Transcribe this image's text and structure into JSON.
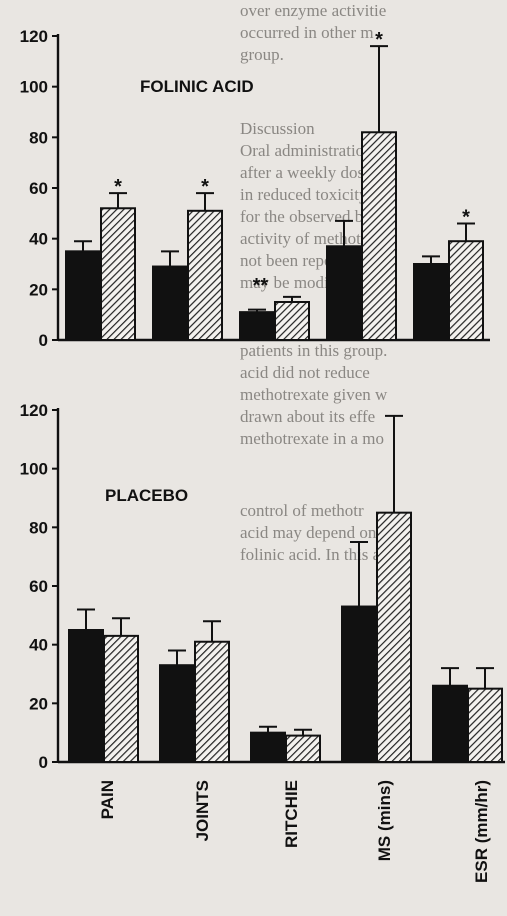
{
  "chart_data": [
    {
      "type": "bar",
      "title": "FOLINIC ACID",
      "categories": [
        "PAIN",
        "JOINTS",
        "RITCHIE",
        "MS  (mins)",
        "ESR  (mm/hr)"
      ],
      "ylim": [
        0,
        120
      ],
      "yticks": [
        0,
        20,
        40,
        60,
        80,
        100,
        120
      ],
      "series": [
        {
          "values": [
            35,
            29,
            11,
            37,
            30
          ],
          "errors": [
            4,
            6,
            1,
            10,
            3
          ],
          "fill": "solid"
        },
        {
          "values": [
            52,
            51,
            15,
            82,
            39
          ],
          "errors": [
            6,
            7,
            2,
            34,
            7
          ],
          "fill": "hatched"
        }
      ],
      "significance": [
        "*",
        "*",
        "**",
        "*",
        "*"
      ],
      "legend": "none",
      "grid": false
    },
    {
      "type": "bar",
      "title": "PLACEBO",
      "categories": [
        "PAIN",
        "JOINTS",
        "RITCHIE",
        "MS  (mins)",
        "ESR  (mm/hr)"
      ],
      "ylim": [
        0,
        120
      ],
      "yticks": [
        0,
        20,
        40,
        60,
        80,
        100,
        120
      ],
      "series": [
        {
          "values": [
            45,
            33,
            10,
            53,
            26
          ],
          "errors": [
            7,
            5,
            2,
            22,
            6
          ],
          "fill": "solid"
        },
        {
          "values": [
            43,
            41,
            9,
            85,
            25
          ],
          "errors": [
            6,
            7,
            2,
            33,
            7
          ],
          "fill": "hatched"
        }
      ],
      "significance": [
        "",
        "",
        "",
        "",
        ""
      ],
      "legend": "none",
      "grid": false
    }
  ],
  "background_text": [
    "over enzyme activitie",
    "occurred in other m",
    "group.",
    "Discussion",
    "Oral administration o",
    "after a weekly dose of",
    "in reduced toxicity fo",
    "for the observed benef",
    "activity of methotrex",
    "not been reported. It",
    "may be modified or a",
    "patients in this group.",
    "acid did not reduce",
    "methotrexate given w",
    "drawn about its effe",
    "methotrexate in a mo",
    "control of methotr",
    "acid may depend on",
    "folinic acid. In this a"
  ],
  "colors": {
    "solid": "#111111",
    "hatch": "#222222",
    "background": "#e9e6e2"
  }
}
